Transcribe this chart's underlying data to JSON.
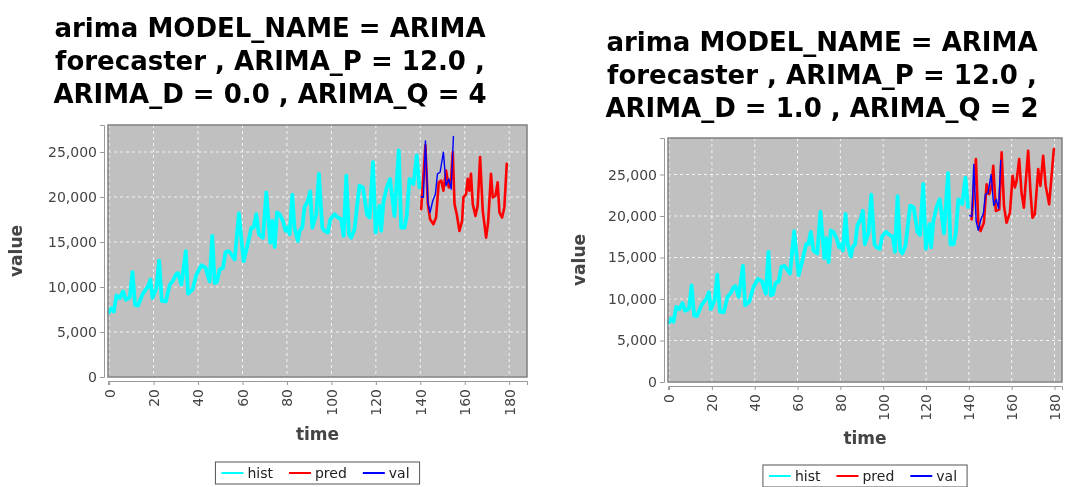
{
  "chart_data": [
    {
      "type": "line",
      "title": "arima MODEL_NAME = ARIMA forecaster , ARIMA_P = 12.0 , ARIMA_D = 0.0 , ARIMA_Q = 4",
      "xlabel": "time",
      "ylabel": "value",
      "xlim": [
        -0.5,
        188
      ],
      "ylim": [
        0,
        28000
      ],
      "xticks": [
        0,
        20,
        40,
        60,
        80,
        100,
        120,
        140,
        160,
        180
      ],
      "yticks": [
        0,
        {
          "value": 5000,
          "label": "5,000"
        },
        {
          "value": 10000,
          "label": "10,000"
        },
        {
          "value": 15000,
          "label": "15,000"
        },
        {
          "value": 20000,
          "label": "20,000"
        },
        {
          "value": 25000,
          "label": "25,000"
        }
      ],
      "grid": true,
      "legend": "bottom",
      "series": [
        {
          "name": "hist",
          "color": "#00ffff",
          "x": [
            0,
            1,
            2.1,
            3.3,
            4.8,
            6.3,
            7.5,
            9.3,
            10.5,
            11.7,
            13,
            15.3,
            17.5,
            18.6,
            19.5,
            21.3,
            22.5,
            23.7,
            25.5,
            27.3,
            28.8,
            30,
            31,
            32.5,
            34.5,
            35.5,
            37.5,
            39.3,
            41.5,
            43.4,
            45.2,
            46.4,
            47.5,
            48.5,
            49.7,
            51.2,
            52.4,
            53.9,
            55,
            56.5,
            58.4,
            60.5,
            62,
            64,
            65,
            66.2,
            67.4,
            69.2,
            70.7,
            72.5,
            73.4,
            74.5,
            75.5,
            76.7,
            78.2,
            79.4,
            80.4,
            81.2,
            82.4,
            83.4,
            84.9,
            85.7,
            86.9,
            87.9,
            89.4,
            90.5,
            91.4,
            93.2,
            94.4,
            95.9,
            96.9,
            98.4,
            99.5,
            101.4,
            102.9,
            104.4,
            105.5,
            106.7,
            107.9,
            108.9,
            110.4,
            112.6,
            114.2,
            116,
            117.2,
            118.7,
            119.9,
            121.6,
            122.4,
            123.4,
            124.9,
            126.4,
            128.4,
            130.3,
            131.4,
            132.9,
            133.9,
            135.1,
            136.9,
            138.4,
            139.6
          ],
          "values": [
            7200,
            7650,
            7270,
            9060,
            8770,
            9510,
            8580,
            8840,
            11640,
            8020,
            7940,
            9330,
            10070,
            10820,
            8770,
            9880,
            12940,
            8470,
            8390,
            10260,
            10710,
            11380,
            11560,
            10260,
            13990,
            9250,
            9700,
            11380,
            12420,
            12120,
            10630,
            15670,
            10440,
            10560,
            11940,
            12120,
            13880,
            13990,
            13610,
            13060,
            18170,
            12870,
            14360,
            16600,
            16600,
            18090,
            15850,
            15480,
            20520,
            14920,
            17340,
            14440,
            18280,
            18090,
            17340,
            16230,
            16600,
            15850,
            20250,
            16600,
            15110,
            16230,
            16600,
            18840,
            19580,
            20630,
            16600,
            18090,
            22570,
            16600,
            16230,
            16040,
            17530,
            18090,
            17720,
            17530,
            15670,
            22380,
            15850,
            15480,
            16410,
            21260,
            21070,
            18090,
            17720,
            23870,
            16040,
            19020,
            16230,
            19400,
            21070,
            22010,
            17900,
            25180,
            16600,
            16600,
            17900,
            22010,
            21450,
            24620,
            21070
          ]
        },
        {
          "name": "pred",
          "color": "#ff0000",
          "x": [
            140.4,
            142.3,
            143.4,
            144.4,
            145.9,
            147.1,
            148.3,
            149.4,
            150.4,
            151.6,
            152.8,
            153.9,
            154.6,
            155.4,
            156.4,
            157.6,
            158.8,
            159.4,
            160.6,
            161.3,
            162.1,
            162.8,
            163.6,
            164.8,
            165.8,
            166.9,
            168.1,
            169.6,
            170.5,
            171.8,
            172.6,
            173.8,
            174.8,
            175.6,
            176.8,
            177.8,
            178.9
          ],
          "values": [
            18650,
            25740,
            19210,
            17530,
            16970,
            17720,
            21630,
            21820,
            20700,
            22940,
            21070,
            22190,
            24990,
            19210,
            18090,
            16230,
            17340,
            19960,
            20330,
            22010,
            20700,
            22570,
            19210,
            17900,
            19020,
            24430,
            18460,
            15480,
            17160,
            22570,
            19960,
            20140,
            21630,
            18280,
            17720,
            18840,
            23690
          ]
        },
        {
          "name": "val",
          "color": "#0000ff",
          "x": [
            140.4,
            141.4,
            142.3,
            143.4,
            144.4,
            145.6,
            146.8,
            147.7,
            148.9,
            150.4,
            151.6,
            152.8,
            153.9,
            154.9
          ],
          "values": [
            20030,
            19960,
            26220,
            19400,
            18280,
            19580,
            20330,
            22570,
            22750,
            24990,
            21260,
            22010,
            20890,
            26740
          ]
        }
      ]
    },
    {
      "type": "line",
      "title": "arima MODEL_NAME = ARIMA forecaster , ARIMA_P = 12.0 , ARIMA_D = 1.0 , ARIMA_Q = 2",
      "xlabel": "time",
      "ylabel": "value",
      "xlim": [
        -0.5,
        183.5
      ],
      "ylim": [
        0,
        29400
      ],
      "xticks": [
        0,
        20,
        40,
        60,
        80,
        100,
        120,
        140,
        160,
        180
      ],
      "yticks": [
        0,
        {
          "value": 5000,
          "label": "5,000"
        },
        {
          "value": 10000,
          "label": "10,000"
        },
        {
          "value": 15000,
          "label": "15,000"
        },
        {
          "value": 20000,
          "label": "20,000"
        },
        {
          "value": 25000,
          "label": "25,000"
        }
      ],
      "grid": true,
      "legend": "bottom",
      "series": [
        {
          "name": "hist",
          "color": "#00ffff",
          "x": [
            0,
            1,
            2.1,
            3.3,
            4.8,
            6.3,
            7.5,
            9.3,
            10.5,
            11.7,
            13,
            15.3,
            17.5,
            18.6,
            19.5,
            21.3,
            22.5,
            23.7,
            25.5,
            27.3,
            28.8,
            30,
            31,
            32.5,
            34.5,
            35.5,
            37.5,
            39.3,
            41.5,
            43.4,
            45.2,
            46.4,
            47.5,
            48.5,
            49.7,
            51.2,
            52.4,
            53.9,
            55,
            56.5,
            58.4,
            60.5,
            62,
            64,
            65,
            66.2,
            67.4,
            69.2,
            70.7,
            72.5,
            73.4,
            74.5,
            75.5,
            76.7,
            78.2,
            79.4,
            80.4,
            81.2,
            82.4,
            83.4,
            84.9,
            85.7,
            86.9,
            87.9,
            89.4,
            90.5,
            91.4,
            93.2,
            94.4,
            95.9,
            96.9,
            98.4,
            99.5,
            101.4,
            102.9,
            104.4,
            105.5,
            106.7,
            107.9,
            108.9,
            110.4,
            112.6,
            114.2,
            116,
            117.2,
            118.7,
            119.9,
            121.6,
            122.4,
            123.4,
            124.9,
            126.4,
            128.4,
            130.3,
            131.4,
            132.9,
            133.9,
            135.1,
            136.9,
            138.4,
            139.6
          ],
          "values": [
            7200,
            7650,
            7270,
            9060,
            8770,
            9510,
            8580,
            8840,
            11640,
            8020,
            7940,
            9330,
            10070,
            10820,
            8770,
            9880,
            12940,
            8470,
            8390,
            10260,
            10710,
            11380,
            11560,
            10260,
            13990,
            9250,
            9700,
            11380,
            12420,
            12120,
            10630,
            15670,
            10440,
            10560,
            11940,
            12120,
            13880,
            13990,
            13610,
            13060,
            18170,
            12870,
            14360,
            16600,
            16600,
            18090,
            15850,
            15480,
            20520,
            14920,
            17340,
            14440,
            18280,
            18090,
            17340,
            16230,
            16600,
            15850,
            20250,
            16600,
            15110,
            16230,
            16600,
            18840,
            19580,
            20630,
            16600,
            18090,
            22570,
            16600,
            16230,
            16040,
            17530,
            18090,
            17720,
            17530,
            15670,
            22380,
            15850,
            15480,
            16410,
            21260,
            21070,
            18090,
            17720,
            23870,
            16040,
            19020,
            16230,
            19400,
            21070,
            22010,
            17900,
            25180,
            16600,
            16600,
            17900,
            22010,
            21450,
            24620,
            21070
          ]
        },
        {
          "name": "pred",
          "color": "#ff0000",
          "x": [
            141.3,
            143.3,
            144.4,
            145.5,
            147,
            148.3,
            149.5,
            150.6,
            151.4,
            152.6,
            154.2,
            155.3,
            156.4,
            157.6,
            159.2,
            160.4,
            161.5,
            162.3,
            163.5,
            164.6,
            165.7,
            166.6,
            167.7,
            168.8,
            169.7,
            170.8,
            172.4,
            173.4,
            174.7,
            175.9,
            177.5,
            179.7
          ],
          "values": [
            19590,
            26860,
            19190,
            18180,
            19190,
            23830,
            22620,
            23630,
            26050,
            20600,
            20800,
            27670,
            21200,
            19190,
            20400,
            24840,
            23430,
            24230,
            26860,
            22820,
            21000,
            24230,
            27870,
            22820,
            19790,
            20200,
            25650,
            23630,
            27260,
            23630,
            21410,
            28070
          ]
        },
        {
          "name": "val",
          "color": "#0000ff",
          "x": [
            140.4,
            141.4,
            142.3,
            143.4,
            144.4,
            145.6,
            146.8,
            147.7,
            148.9,
            150.4,
            151.6,
            152.8,
            153.9,
            154.9
          ],
          "values": [
            20030,
            19960,
            26220,
            19400,
            18280,
            19580,
            20330,
            22570,
            22750,
            24990,
            21260,
            22010,
            20890,
            26740
          ]
        }
      ]
    }
  ]
}
